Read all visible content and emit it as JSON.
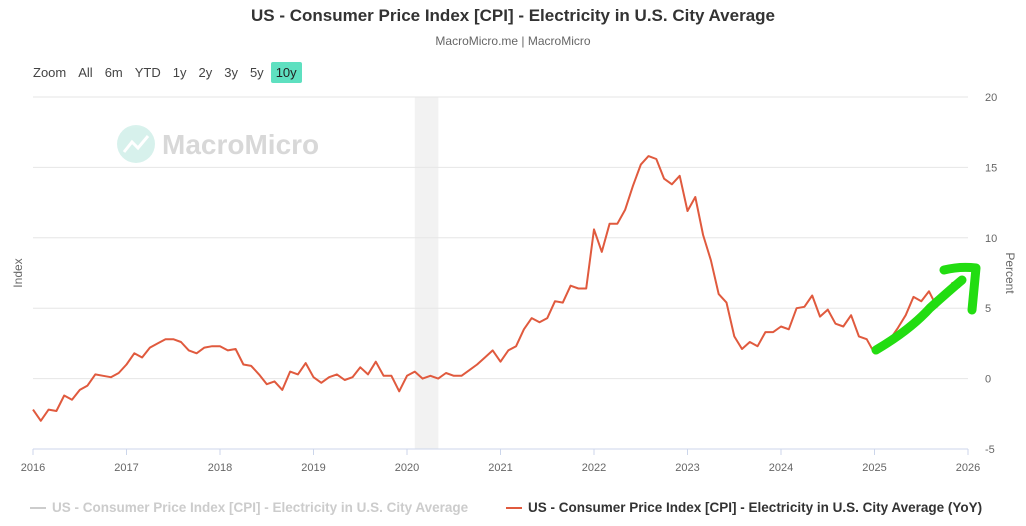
{
  "header": {
    "title": "US - Consumer Price Index [CPI] - Electricity in U.S. City Average",
    "subtitle": "MacroMicro.me | MacroMicro",
    "watermark": "MacroMicro"
  },
  "range_selector": {
    "label": "Zoom",
    "buttons": [
      "All",
      "6m",
      "YTD",
      "1y",
      "2y",
      "3y",
      "5y",
      "10y"
    ],
    "selected": "10y"
  },
  "colors": {
    "yoy": "#e05a3e",
    "hidden_series": "#cccccc",
    "recession": "#f2f2f2",
    "annotation_arrow": "#22dd11",
    "accent": "#5ee0c0"
  },
  "chart_data": {
    "type": "line",
    "title": "US - Consumer Price Index [CPI] - Electricity in U.S. City Average",
    "y_left_label": "Index",
    "y_right_label": "Percent",
    "xlim": [
      2016,
      2026
    ],
    "ylim_right": [
      -5,
      20
    ],
    "x_ticks": [
      "2016",
      "2017",
      "2018",
      "2019",
      "2020",
      "2021",
      "2022",
      "2023",
      "2024",
      "2025",
      "2026"
    ],
    "y_right_ticks": [
      "-5",
      "0",
      "5",
      "10",
      "15",
      "20"
    ],
    "grid": true,
    "legend_placement": "bottom",
    "recession_band": [
      "2020-02",
      "2020-04"
    ],
    "series": [
      {
        "name": "US - Consumer Price Index [CPI] - Electricity in U.S. City Average",
        "visible": false,
        "values": []
      },
      {
        "name": "US - Consumer Price Index [CPI] - Electricity in U.S. City Average (YoY)",
        "visible": true,
        "start": "2016-01",
        "frequency": "monthly",
        "values": [
          -2.2,
          -3.0,
          -2.2,
          -2.3,
          -1.2,
          -1.5,
          -0.8,
          -0.5,
          0.3,
          0.2,
          0.1,
          0.4,
          1.0,
          1.8,
          1.5,
          2.2,
          2.5,
          2.8,
          2.8,
          2.6,
          2.0,
          1.8,
          2.2,
          2.3,
          2.3,
          2.0,
          2.1,
          1.0,
          0.9,
          0.3,
          -0.4,
          -0.2,
          -0.8,
          0.5,
          0.3,
          1.1,
          0.1,
          -0.3,
          0.1,
          0.3,
          -0.1,
          0.1,
          0.8,
          0.3,
          1.2,
          0.2,
          0.2,
          -0.9,
          0.2,
          0.5,
          0.0,
          0.2,
          0.0,
          0.4,
          0.2,
          0.2,
          0.6,
          1.0,
          1.5,
          2.0,
          1.2,
          2.0,
          2.3,
          3.5,
          4.3,
          4.0,
          4.3,
          5.5,
          5.4,
          6.6,
          6.4,
          6.4,
          10.6,
          9.0,
          11.0,
          11.0,
          12.0,
          13.7,
          15.2,
          15.8,
          15.6,
          14.2,
          13.8,
          14.4,
          11.9,
          12.9,
          10.2,
          8.4,
          6.0,
          5.4,
          3.0,
          2.1,
          2.6,
          2.3,
          3.3,
          3.3,
          3.7,
          3.5,
          5.0,
          5.1,
          5.9,
          4.4,
          4.9,
          3.9,
          3.7,
          4.5,
          3.0,
          2.8,
          1.8,
          2.5,
          2.8,
          3.6,
          4.5,
          5.8,
          5.5,
          6.2,
          5.1,
          5.8,
          6.8,
          6.5
        ]
      }
    ]
  }
}
